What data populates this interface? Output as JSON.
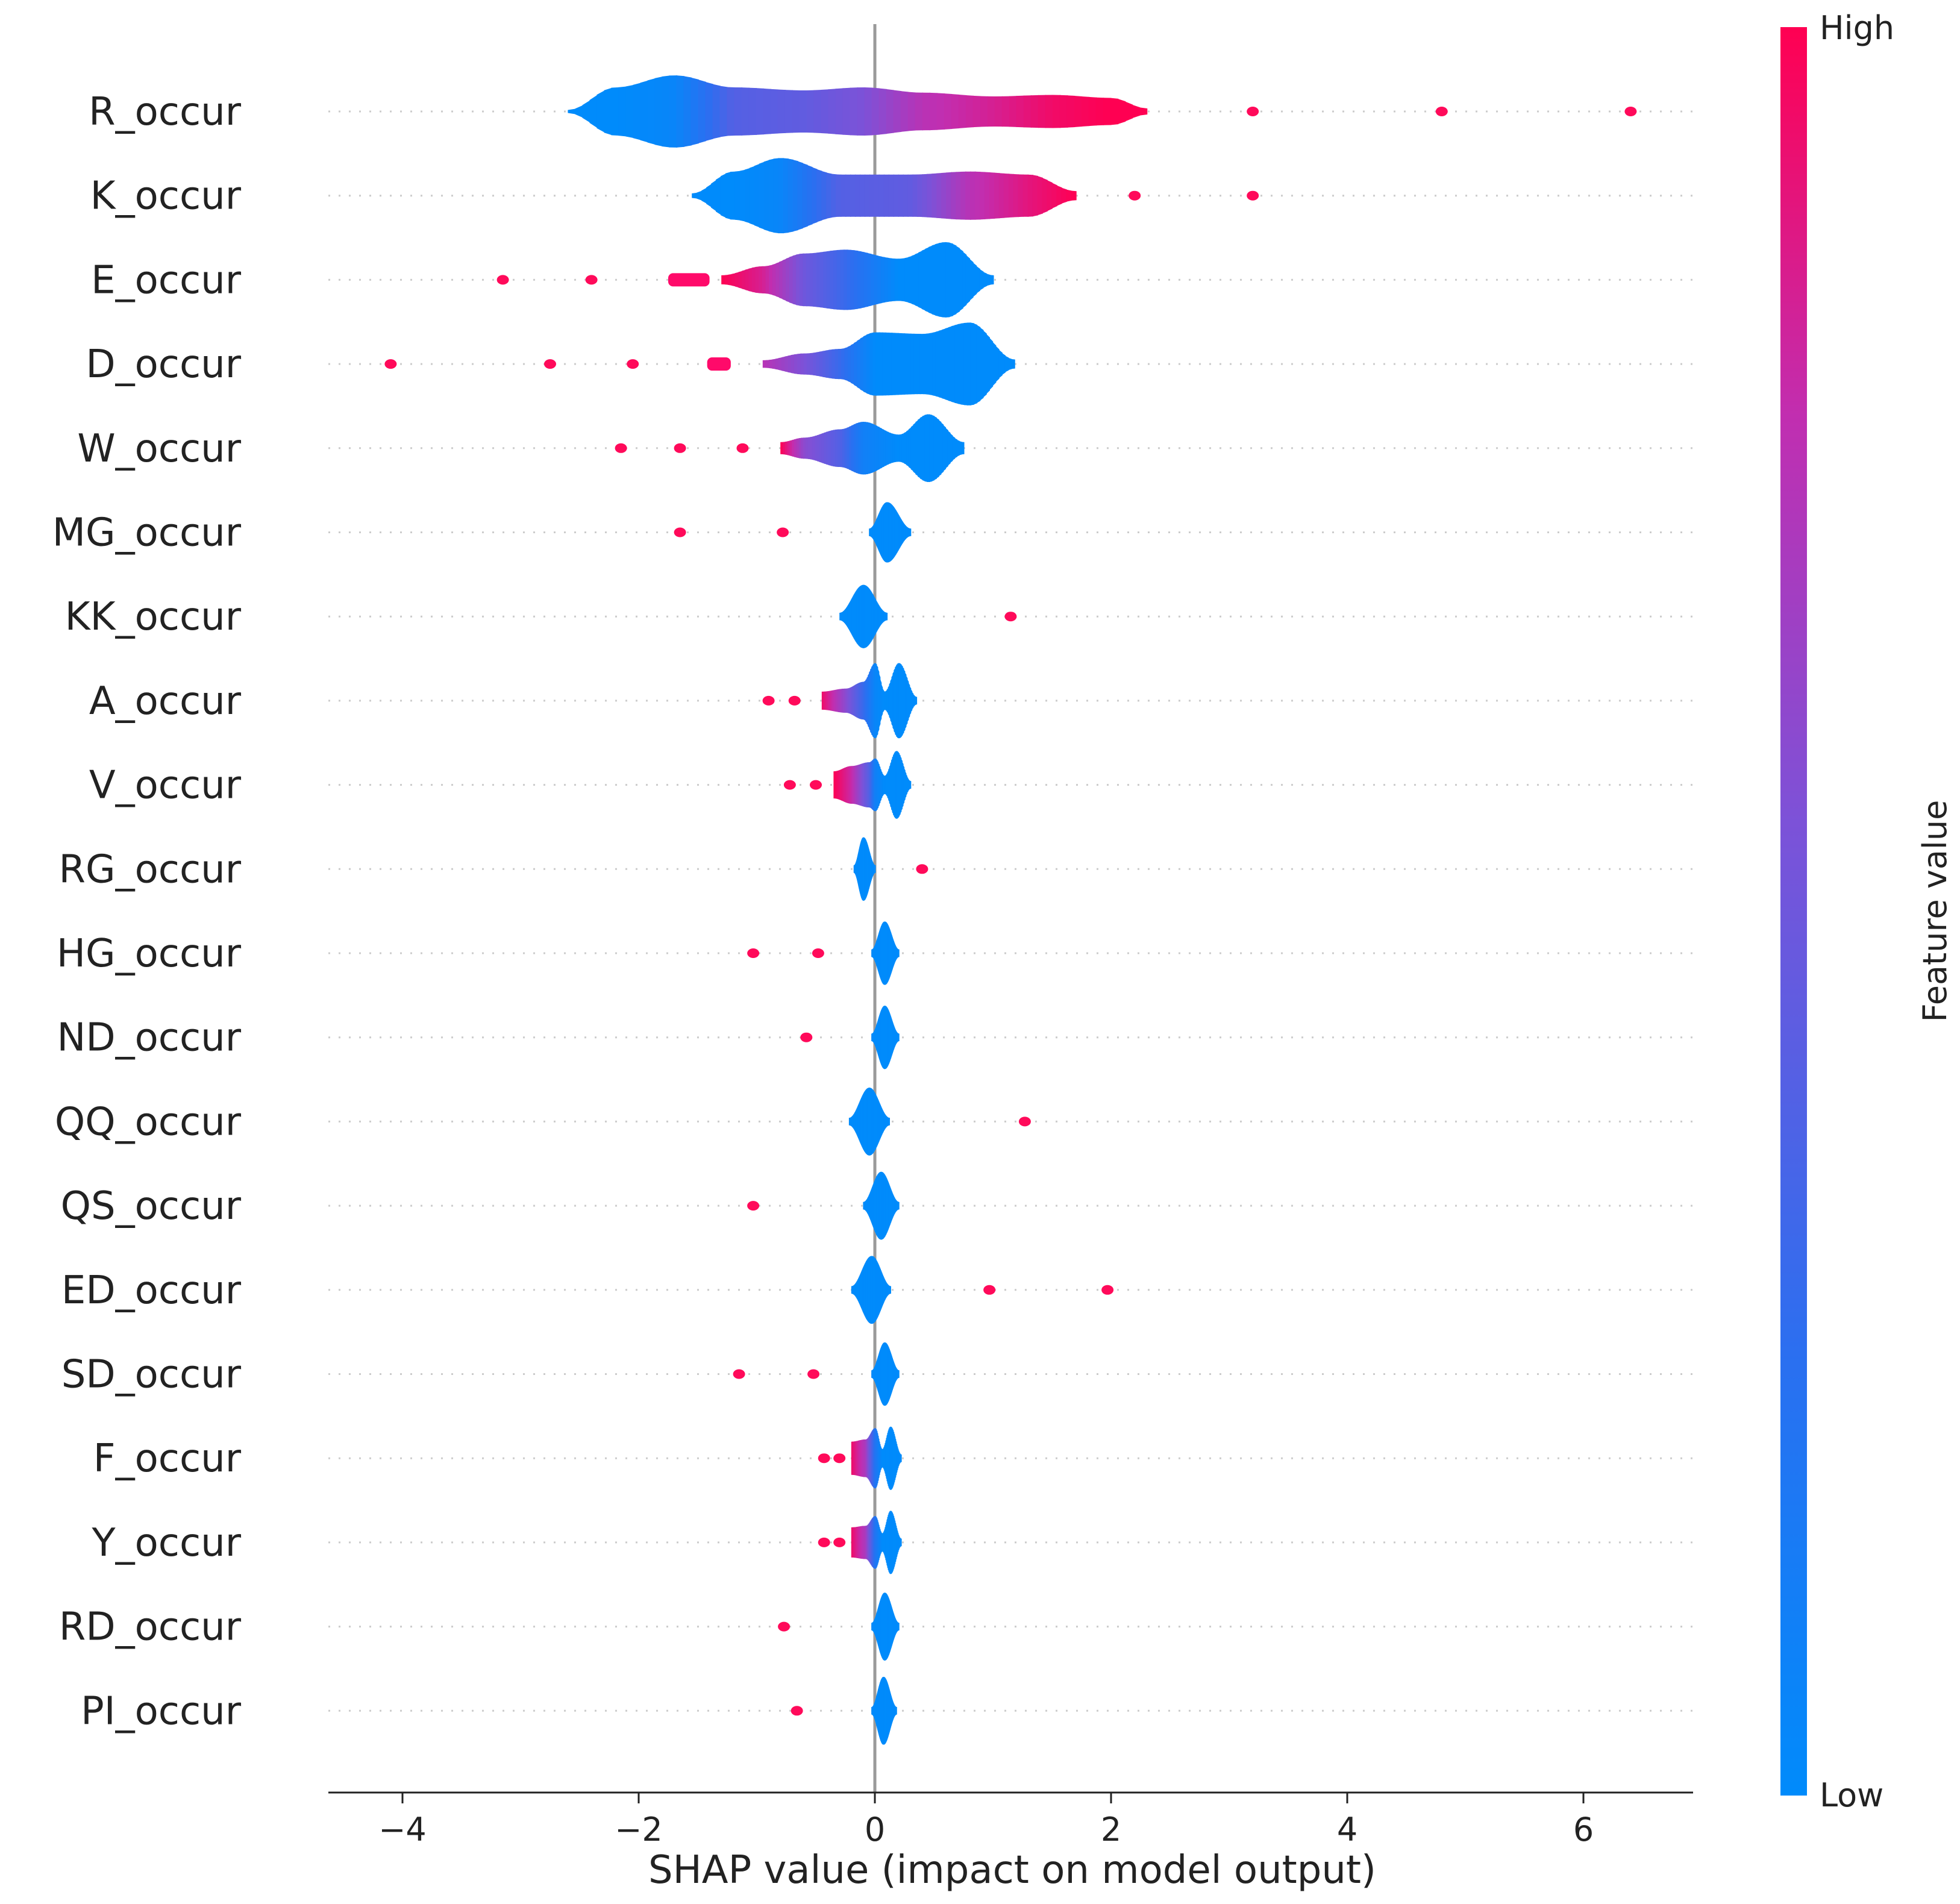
{
  "chart_data": {
    "type": "violin",
    "title": "",
    "xlabel": "SHAP value (impact on model output)",
    "ylabel": "",
    "xlim": [
      -4.6,
      6.9
    ],
    "xticks": [
      -4,
      -2,
      0,
      2,
      4,
      6
    ],
    "xtick_labels": [
      "−4",
      "−2",
      "0",
      "2",
      "4",
      "6"
    ],
    "colorbar": {
      "label": "Feature value",
      "high_label": "High",
      "low_label": "Low",
      "colors": [
        "#008bfb",
        "#2b6ff0",
        "#7c52d8",
        "#c12eb0",
        "#ff0052"
      ]
    },
    "features": [
      {
        "name": "R_occur",
        "profile": [
          [
            -2.6,
            0.02,
            0.0
          ],
          [
            -2.2,
            0.32,
            0.0
          ],
          [
            -1.7,
            0.48,
            0.05
          ],
          [
            -1.2,
            0.32,
            0.4
          ],
          [
            -0.6,
            0.28,
            0.45
          ],
          [
            -0.1,
            0.32,
            0.55
          ],
          [
            0.4,
            0.25,
            0.75
          ],
          [
            1.0,
            0.2,
            0.85
          ],
          [
            1.5,
            0.22,
            0.95
          ],
          [
            2.0,
            0.18,
            1.0
          ],
          [
            2.3,
            0.04,
            1.0
          ]
        ],
        "outliers": [
          3.2,
          4.8,
          6.4
        ]
      },
      {
        "name": "K_occur",
        "profile": [
          [
            -1.55,
            0.03,
            0.0
          ],
          [
            -1.2,
            0.32,
            0.0
          ],
          [
            -0.8,
            0.5,
            0.05
          ],
          [
            -0.3,
            0.28,
            0.4
          ],
          [
            0.3,
            0.28,
            0.45
          ],
          [
            0.8,
            0.32,
            0.75
          ],
          [
            1.3,
            0.28,
            0.9
          ],
          [
            1.7,
            0.06,
            1.0
          ]
        ],
        "outliers": [
          2.2,
          3.2
        ]
      },
      {
        "name": "E_occur",
        "profile": [
          [
            -1.3,
            0.06,
            1.0
          ],
          [
            -0.95,
            0.18,
            0.85
          ],
          [
            -0.6,
            0.35,
            0.5
          ],
          [
            -0.25,
            0.4,
            0.3
          ],
          [
            0.2,
            0.28,
            0.0
          ],
          [
            0.6,
            0.5,
            0.0
          ],
          [
            1.0,
            0.06,
            0.0
          ]
        ],
        "outliers": [
          -3.15,
          -2.4
        ],
        "segments": [
          [
            -1.75,
            -1.4
          ]
        ]
      },
      {
        "name": "D_occur",
        "profile": [
          [
            -0.95,
            0.05,
            0.75
          ],
          [
            -0.6,
            0.14,
            0.55
          ],
          [
            -0.3,
            0.2,
            0.3
          ],
          [
            0.0,
            0.42,
            0.0
          ],
          [
            0.4,
            0.4,
            0.0
          ],
          [
            0.8,
            0.55,
            0.0
          ],
          [
            1.18,
            0.06,
            0.0
          ]
        ],
        "outliers": [
          -4.1,
          -2.75,
          -2.05
        ],
        "segments": [
          [
            -1.42,
            -1.22
          ]
        ]
      },
      {
        "name": "W_occur",
        "profile": [
          [
            -0.8,
            0.08,
            1.0
          ],
          [
            -0.6,
            0.14,
            0.6
          ],
          [
            -0.3,
            0.25,
            0.4
          ],
          [
            -0.1,
            0.35,
            0.1
          ],
          [
            0.2,
            0.18,
            0.0
          ],
          [
            0.45,
            0.45,
            0.0
          ],
          [
            0.75,
            0.08,
            0.0
          ]
        ],
        "outliers": [
          -2.15,
          -1.65,
          -1.12
        ]
      },
      {
        "name": "MG_occur",
        "profile": [
          [
            -0.05,
            0.05,
            0.0
          ],
          [
            0.1,
            0.4,
            0.0
          ],
          [
            0.3,
            0.05,
            0.0
          ]
        ],
        "outliers": [
          -1.65,
          -0.78
        ]
      },
      {
        "name": "KK_occur",
        "profile": [
          [
            -0.3,
            0.05,
            0.0
          ],
          [
            -0.1,
            0.42,
            0.0
          ],
          [
            0.1,
            0.05,
            0.0
          ]
        ],
        "outliers": [
          1.15
        ]
      },
      {
        "name": "A_occur",
        "profile": [
          [
            -0.45,
            0.12,
            0.95
          ],
          [
            -0.25,
            0.16,
            0.6
          ],
          [
            -0.1,
            0.25,
            0.3
          ],
          [
            0.0,
            0.5,
            0.05
          ],
          [
            0.08,
            0.12,
            0.0
          ],
          [
            0.2,
            0.5,
            0.0
          ],
          [
            0.35,
            0.05,
            0.0
          ]
        ],
        "outliers": [
          -0.9,
          -0.68
        ]
      },
      {
        "name": "V_occur",
        "profile": [
          [
            -0.35,
            0.18,
            1.0
          ],
          [
            -0.2,
            0.25,
            0.8
          ],
          [
            -0.05,
            0.3,
            0.4
          ],
          [
            0.0,
            0.35,
            0.1
          ],
          [
            0.08,
            0.12,
            0.0
          ],
          [
            0.18,
            0.45,
            0.0
          ],
          [
            0.3,
            0.05,
            0.0
          ]
        ],
        "outliers": [
          -0.72,
          -0.5
        ]
      },
      {
        "name": "RG_occur",
        "profile": [
          [
            -0.18,
            0.05,
            0.0
          ],
          [
            -0.1,
            0.42,
            0.0
          ],
          [
            0.0,
            0.05,
            0.0
          ]
        ],
        "outliers": [
          0.4
        ]
      },
      {
        "name": "HG_occur",
        "profile": [
          [
            -0.03,
            0.05,
            0.0
          ],
          [
            0.08,
            0.42,
            0.0
          ],
          [
            0.2,
            0.05,
            0.0
          ]
        ],
        "outliers": [
          -1.03,
          -0.48
        ]
      },
      {
        "name": "ND_occur",
        "profile": [
          [
            -0.03,
            0.05,
            0.0
          ],
          [
            0.08,
            0.42,
            0.0
          ],
          [
            0.2,
            0.05,
            0.0
          ]
        ],
        "outliers": [
          -0.58
        ]
      },
      {
        "name": "QQ_occur",
        "profile": [
          [
            -0.22,
            0.05,
            0.0
          ],
          [
            -0.05,
            0.45,
            0.0
          ],
          [
            0.12,
            0.05,
            0.0
          ]
        ],
        "outliers": [
          1.27
        ]
      },
      {
        "name": "QS_occur",
        "profile": [
          [
            -0.1,
            0.05,
            0.0
          ],
          [
            0.05,
            0.45,
            0.0
          ],
          [
            0.2,
            0.05,
            0.0
          ]
        ],
        "outliers": [
          -1.03
        ]
      },
      {
        "name": "ED_occur",
        "profile": [
          [
            -0.2,
            0.05,
            0.0
          ],
          [
            -0.03,
            0.45,
            0.0
          ],
          [
            0.13,
            0.05,
            0.0
          ]
        ],
        "outliers": [
          0.97,
          1.97
        ]
      },
      {
        "name": "SD_occur",
        "profile": [
          [
            -0.03,
            0.05,
            0.0
          ],
          [
            0.08,
            0.42,
            0.0
          ],
          [
            0.2,
            0.05,
            0.0
          ]
        ],
        "outliers": [
          -1.15,
          -0.52
        ]
      },
      {
        "name": "F_occur",
        "profile": [
          [
            -0.2,
            0.22,
            0.95
          ],
          [
            -0.08,
            0.25,
            0.7
          ],
          [
            0.0,
            0.4,
            0.2
          ],
          [
            0.06,
            0.12,
            0.0
          ],
          [
            0.13,
            0.42,
            0.0
          ],
          [
            0.22,
            0.05,
            0.0
          ]
        ],
        "outliers": [
          -0.43,
          -0.3
        ]
      },
      {
        "name": "Y_occur",
        "profile": [
          [
            -0.2,
            0.2,
            0.95
          ],
          [
            -0.08,
            0.22,
            0.7
          ],
          [
            0.0,
            0.35,
            0.2
          ],
          [
            0.06,
            0.12,
            0.0
          ],
          [
            0.13,
            0.42,
            0.0
          ],
          [
            0.22,
            0.05,
            0.0
          ]
        ],
        "outliers": [
          -0.43,
          -0.3
        ]
      },
      {
        "name": "RD_occur",
        "profile": [
          [
            -0.03,
            0.05,
            0.0
          ],
          [
            0.08,
            0.45,
            0.0
          ],
          [
            0.2,
            0.05,
            0.0
          ]
        ],
        "outliers": [
          -0.77
        ]
      },
      {
        "name": "PI_occur",
        "profile": [
          [
            -0.03,
            0.05,
            0.0
          ],
          [
            0.07,
            0.45,
            0.0
          ],
          [
            0.18,
            0.05,
            0.0
          ]
        ],
        "outliers": [
          -0.66
        ]
      }
    ]
  }
}
